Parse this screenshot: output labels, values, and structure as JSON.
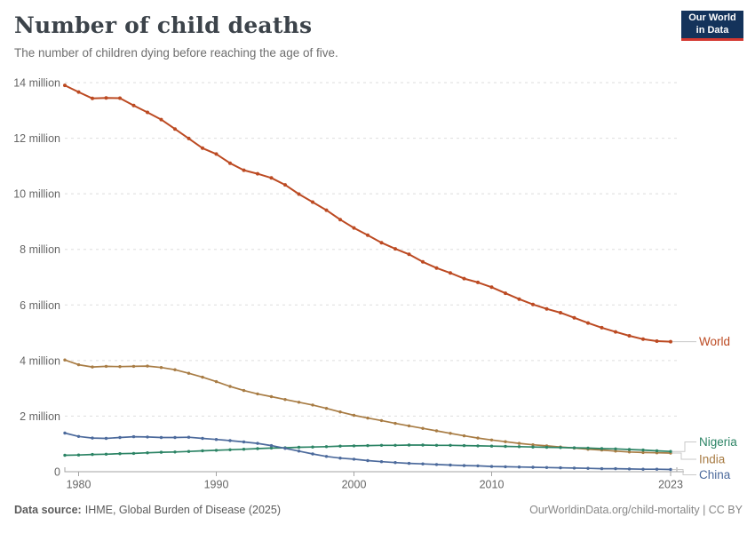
{
  "header": {
    "logo": {
      "line1": "Our World",
      "line2": "in Data"
    }
  },
  "footer": {
    "source_label": "Data source:",
    "source_value": "IHME, Global Burden of Disease (2025)",
    "link": "OurWorldinData.org/child-mortality | CC BY"
  },
  "styles": {
    "grid_color": "#DEDEDE",
    "axis_color": "#A3A3A3",
    "tick_text_color": "#666666",
    "connector_color": "#C9C9C9",
    "logo_bg": "#14335B",
    "logo_accent": "#D43830"
  },
  "chart_data": {
    "type": "line",
    "title": "Number of child deaths",
    "subtitle": "The number of children dying before reaching the age of five.",
    "unit": "deaths (millions)",
    "ylim": [
      0,
      14
    ],
    "grid": "dashed-horizontal",
    "legend_position": "right-end-labels",
    "yticks": [
      {
        "value": 0,
        "label": "0"
      },
      {
        "value": 2,
        "label": "2 million"
      },
      {
        "value": 4,
        "label": "4 million"
      },
      {
        "value": 6,
        "label": "6 million"
      },
      {
        "value": 8,
        "label": "8 million"
      },
      {
        "value": 10,
        "label": "10 million"
      },
      {
        "value": 12,
        "label": "12 million"
      },
      {
        "value": 14,
        "label": "14 million"
      }
    ],
    "xticks": [
      1980,
      1990,
      2000,
      2010,
      2023
    ],
    "years": [
      1979,
      1980,
      1981,
      1982,
      1983,
      1984,
      1985,
      1986,
      1987,
      1988,
      1989,
      1990,
      1991,
      1992,
      1993,
      1994,
      1995,
      1996,
      1997,
      1998,
      1999,
      2000,
      2001,
      2002,
      2003,
      2004,
      2005,
      2006,
      2007,
      2008,
      2009,
      2010,
      2011,
      2012,
      2013,
      2014,
      2015,
      2016,
      2017,
      2018,
      2019,
      2020,
      2021,
      2022,
      2023
    ],
    "series": [
      {
        "name": "World",
        "color": "#BC4A22",
        "values": [
          13.9,
          13.66,
          13.43,
          13.45,
          13.44,
          13.18,
          12.93,
          12.67,
          12.33,
          11.99,
          11.64,
          11.43,
          11.1,
          10.85,
          10.72,
          10.57,
          10.32,
          9.99,
          9.7,
          9.41,
          9.07,
          8.77,
          8.51,
          8.24,
          8.02,
          7.82,
          7.55,
          7.33,
          7.15,
          6.95,
          6.81,
          6.64,
          6.42,
          6.21,
          6.02,
          5.86,
          5.72,
          5.54,
          5.35,
          5.18,
          5.03,
          4.89,
          4.77,
          4.7,
          4.68
        ]
      },
      {
        "name": "Nigeria",
        "color": "#2C8465",
        "values": [
          0.59,
          0.6,
          0.62,
          0.63,
          0.65,
          0.66,
          0.68,
          0.7,
          0.71,
          0.73,
          0.75,
          0.77,
          0.79,
          0.81,
          0.83,
          0.85,
          0.86,
          0.88,
          0.89,
          0.9,
          0.92,
          0.93,
          0.94,
          0.95,
          0.95,
          0.96,
          0.96,
          0.95,
          0.95,
          0.94,
          0.93,
          0.92,
          0.91,
          0.9,
          0.89,
          0.88,
          0.87,
          0.86,
          0.85,
          0.83,
          0.82,
          0.8,
          0.78,
          0.75,
          0.73
        ]
      },
      {
        "name": "India",
        "color": "#A87C44",
        "values": [
          4.02,
          3.85,
          3.77,
          3.79,
          3.78,
          3.79,
          3.8,
          3.75,
          3.67,
          3.54,
          3.4,
          3.24,
          3.07,
          2.92,
          2.8,
          2.7,
          2.6,
          2.5,
          2.4,
          2.28,
          2.15,
          2.03,
          1.93,
          1.84,
          1.74,
          1.65,
          1.56,
          1.47,
          1.38,
          1.29,
          1.21,
          1.14,
          1.08,
          1.02,
          0.97,
          0.93,
          0.89,
          0.85,
          0.81,
          0.78,
          0.74,
          0.71,
          0.69,
          0.68,
          0.67
        ]
      },
      {
        "name": "China",
        "color": "#4C6A9C",
        "values": [
          1.39,
          1.27,
          1.21,
          1.2,
          1.23,
          1.26,
          1.25,
          1.23,
          1.23,
          1.24,
          1.2,
          1.16,
          1.12,
          1.07,
          1.02,
          0.94,
          0.84,
          0.74,
          0.64,
          0.55,
          0.49,
          0.45,
          0.4,
          0.36,
          0.33,
          0.3,
          0.28,
          0.26,
          0.24,
          0.22,
          0.21,
          0.19,
          0.18,
          0.17,
          0.16,
          0.15,
          0.14,
          0.13,
          0.12,
          0.11,
          0.11,
          0.1,
          0.09,
          0.09,
          0.08
        ]
      }
    ]
  }
}
